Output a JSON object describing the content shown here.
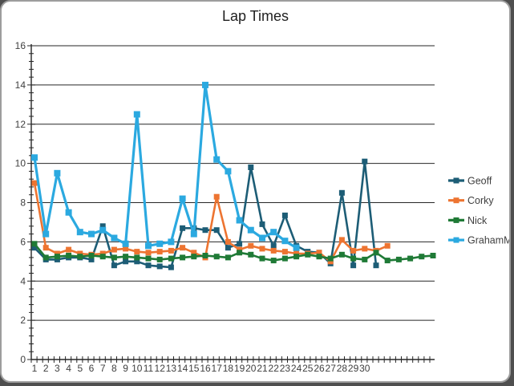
{
  "window": {
    "background_color": "#ffffff",
    "frame_color": "#9d9d9d"
  },
  "chart_data": {
    "type": "line",
    "title": "Lap Times",
    "xlabel": "",
    "ylabel": "",
    "ylim": [
      0,
      16
    ],
    "y_ticks": [
      0,
      2,
      4,
      6,
      8,
      10,
      12,
      14,
      16
    ],
    "y_minor_tick_step": 0.4,
    "grid": "horizontal-major",
    "legend_position": "right",
    "x_tick_labels": [
      "1",
      "2",
      "3",
      "4",
      "5",
      "6",
      "7",
      "8",
      "9",
      "10",
      "11",
      "12",
      "13",
      "14",
      "15",
      "16",
      "17",
      "18",
      "19",
      "20",
      "21",
      "22",
      "23",
      "24",
      "25",
      "26",
      "27",
      "28",
      "29",
      "30"
    ],
    "axis_color": "#262626",
    "label_color": "#3f3f3f",
    "series": [
      {
        "name": "Geoff",
        "color": "#1d5d76",
        "values": [
          5.7,
          5.1,
          5.1,
          5.2,
          5.2,
          5.1,
          6.8,
          4.8,
          5.0,
          5.0,
          4.8,
          4.75,
          4.7,
          6.7,
          6.7,
          6.6,
          6.6,
          5.7,
          5.9,
          9.8,
          6.9,
          5.8,
          7.35,
          5.8,
          5.5,
          5.45,
          4.9,
          8.5,
          4.8,
          10.1,
          4.8
        ]
      },
      {
        "name": "Corky",
        "color": "#ed7431",
        "values": [
          9.0,
          5.7,
          5.4,
          5.6,
          5.4,
          5.35,
          5.4,
          5.6,
          5.65,
          5.5,
          5.45,
          5.5,
          5.55,
          5.7,
          5.45,
          5.2,
          8.3,
          6.0,
          5.6,
          5.8,
          5.65,
          5.55,
          5.5,
          5.4,
          5.4,
          5.45,
          5.0,
          6.1,
          5.55,
          5.65,
          5.55,
          5.8
        ]
      },
      {
        "name": "Nick",
        "color": "#1f7a36",
        "values": [
          5.9,
          5.2,
          5.25,
          5.3,
          5.25,
          5.3,
          5.25,
          5.2,
          5.25,
          5.2,
          5.15,
          5.1,
          5.15,
          5.2,
          5.25,
          5.3,
          5.25,
          5.2,
          5.45,
          5.35,
          5.15,
          5.05,
          5.15,
          5.25,
          5.35,
          5.25,
          5.15,
          5.35,
          5.15,
          5.1,
          5.45,
          5.05,
          5.1,
          5.15,
          5.25,
          5.3
        ]
      },
      {
        "name": "GrahamM",
        "color": "#2ba9e0",
        "values": [
          10.3,
          6.4,
          9.5,
          7.5,
          6.5,
          6.4,
          6.6,
          6.2,
          5.9,
          12.5,
          5.8,
          5.9,
          6.0,
          8.2,
          6.4,
          14.0,
          10.2,
          9.6,
          7.1,
          6.6,
          6.2,
          6.5,
          6.05,
          5.7
        ]
      }
    ]
  }
}
